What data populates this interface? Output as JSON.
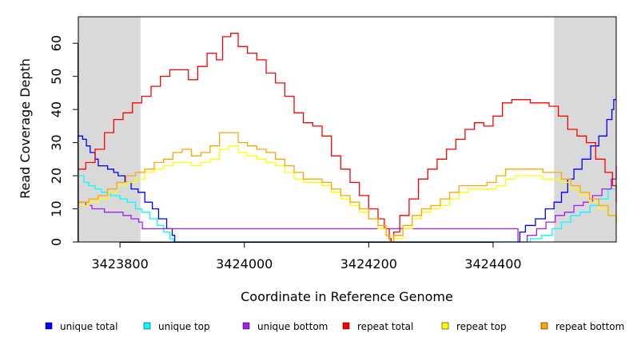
{
  "chart_data": {
    "type": "line",
    "title": "",
    "xlabel": "Coordinate in Reference Genome",
    "ylabel": "Read Coverage Depth",
    "xlim": [
      3423733,
      3424598
    ],
    "ylim": [
      0,
      68
    ],
    "x_ticks": [
      3423800,
      3424000,
      3424200,
      3424400
    ],
    "x_tick_labels": [
      "3423800",
      "3424000",
      "3424200",
      "3424400"
    ],
    "y_ticks": [
      0,
      10,
      20,
      30,
      40,
      50,
      60
    ],
    "y_tick_labels": [
      "0",
      "10",
      "20",
      "30",
      "40",
      "50",
      "60"
    ],
    "shaded_regions": [
      [
        3423733,
        3423833
      ],
      [
        3424498,
        3424598
      ]
    ],
    "grid": false,
    "legend_position": "bottom",
    "series": [
      {
        "name": "unique total",
        "color": "#0000ff",
        "x": [
          3423733,
          3423740,
          3423746,
          3423752,
          3423760,
          3423765,
          3423780,
          3423790,
          3423797,
          3423808,
          3423818,
          3423829,
          3423840,
          3423852,
          3423862,
          3423875,
          3423884,
          3423888,
          3424440,
          3424443,
          3424452,
          3424468,
          3424484,
          3424498,
          3424510,
          3424520,
          3424530,
          3424543,
          3424557,
          3424570,
          3424583,
          3424591,
          3424594,
          3424598
        ],
        "y": [
          32,
          31,
          29,
          27,
          25,
          23,
          22,
          21,
          20,
          18,
          16,
          15,
          12,
          10,
          7,
          4,
          2,
          0,
          0,
          3,
          5,
          7,
          10,
          12,
          15,
          19,
          22,
          25,
          29,
          32,
          37,
          40,
          43,
          43
        ]
      },
      {
        "name": "unique top",
        "color": "#00ffff",
        "x": [
          3423733,
          3423742,
          3423750,
          3423760,
          3423770,
          3423785,
          3423800,
          3423812,
          3423825,
          3423835,
          3423848,
          3423860,
          3423870,
          3423880,
          3423886,
          3424440,
          3424460,
          3424478,
          3424495,
          3424510,
          3424525,
          3424540,
          3424556,
          3424570,
          3424585,
          3424598
        ],
        "y": [
          20,
          18,
          17,
          16,
          15,
          14,
          13,
          12,
          10,
          9,
          7,
          5,
          3,
          1,
          0,
          0,
          1,
          2,
          4,
          6,
          8,
          9,
          11,
          13,
          16,
          18
        ]
      },
      {
        "name": "unique bottom",
        "color": "#a020f0",
        "x": [
          3423733,
          3423745,
          3423755,
          3423765,
          3423775,
          3423790,
          3423805,
          3423818,
          3423830,
          3423836,
          3424440,
          3424455,
          3424470,
          3424485,
          3424500,
          3424515,
          3424530,
          3424545,
          3424560,
          3424575,
          3424590,
          3424598
        ],
        "y": [
          12,
          11,
          10,
          10,
          9,
          9,
          8,
          7,
          6,
          4,
          0,
          2,
          4,
          6,
          8,
          9,
          11,
          12,
          14,
          16,
          19,
          23
        ]
      },
      {
        "name": "repeat total",
        "color": "#ff0000",
        "x": [
          3423733,
          3423745,
          3423760,
          3423775,
          3423790,
          3423805,
          3423820,
          3423835,
          3423850,
          3423865,
          3423880,
          3423895,
          3423910,
          3423925,
          3423940,
          3423955,
          3423965,
          3423978,
          3423990,
          3424005,
          3424020,
          3424035,
          3424050,
          3424065,
          3424080,
          3424095,
          3424110,
          3424125,
          3424140,
          3424155,
          3424170,
          3424185,
          3424200,
          3424215,
          3424225,
          3424233,
          3424236,
          3424240,
          3424250,
          3424265,
          3424280,
          3424295,
          3424310,
          3424325,
          3424340,
          3424355,
          3424370,
          3424385,
          3424400,
          3424415,
          3424430,
          3424445,
          3424460,
          3424475,
          3424490,
          3424505,
          3424520,
          3424535,
          3424550,
          3424565,
          3424580,
          3424592,
          3424598
        ],
        "y": [
          22,
          24,
          28,
          33,
          37,
          39,
          42,
          44,
          47,
          50,
          52,
          52,
          49,
          53,
          57,
          55,
          62,
          63,
          59,
          57,
          55,
          51,
          48,
          44,
          39,
          36,
          35,
          32,
          26,
          22,
          18,
          14,
          10,
          7,
          4,
          1,
          0,
          3,
          8,
          13,
          19,
          22,
          25,
          28,
          31,
          34,
          36,
          35,
          38,
          42,
          43,
          43,
          42,
          42,
          41,
          38,
          34,
          32,
          30,
          25,
          21,
          17,
          12
        ]
      },
      {
        "name": "repeat top",
        "color": "#ffff00",
        "x": [
          3423733,
          3423750,
          3423765,
          3423780,
          3423795,
          3423810,
          3423825,
          3423840,
          3423855,
          3423870,
          3423885,
          3423900,
          3423915,
          3423930,
          3423945,
          3423960,
          3423975,
          3423990,
          3424005,
          3424020,
          3424035,
          3424050,
          3424065,
          3424080,
          3424095,
          3424110,
          3424125,
          3424140,
          3424155,
          3424170,
          3424185,
          3424200,
          3424215,
          3424228,
          3424234,
          3424240,
          3424255,
          3424270,
          3424285,
          3424300,
          3424315,
          3424330,
          3424345,
          3424360,
          3424375,
          3424390,
          3424405,
          3424420,
          3424435,
          3424450,
          3424465,
          3424480,
          3424495,
          3424510,
          3424525,
          3424540,
          3424555,
          3424570,
          3424585,
          3424598
        ],
        "y": [
          11,
          12,
          13,
          15,
          17,
          18,
          19,
          21,
          22,
          23,
          24,
          24,
          23,
          24,
          25,
          28,
          29,
          27,
          26,
          25,
          24,
          23,
          21,
          19,
          18,
          18,
          17,
          15,
          13,
          11,
          9,
          7,
          4,
          2,
          0,
          1,
          4,
          7,
          9,
          10,
          11,
          13,
          15,
          16,
          16,
          16,
          17,
          19,
          20,
          20,
          20,
          19,
          19,
          18,
          16,
          14,
          12,
          10,
          8,
          6
        ]
      },
      {
        "name": "repeat bottom",
        "color": "#ffa500",
        "x": [
          3423733,
          3423750,
          3423765,
          3423780,
          3423795,
          3423810,
          3423825,
          3423840,
          3423855,
          3423870,
          3423885,
          3423900,
          3423915,
          3423930,
          3423945,
          3423960,
          3423975,
          3423990,
          3424005,
          3424020,
          3424035,
          3424050,
          3424065,
          3424080,
          3424095,
          3424110,
          3424125,
          3424140,
          3424155,
          3424170,
          3424185,
          3424200,
          3424215,
          3424228,
          3424234,
          3424240,
          3424255,
          3424270,
          3424285,
          3424300,
          3424315,
          3424330,
          3424345,
          3424360,
          3424375,
          3424390,
          3424405,
          3424420,
          3424435,
          3424450,
          3424465,
          3424480,
          3424495,
          3424510,
          3424525,
          3424540,
          3424555,
          3424570,
          3424585,
          3424598
        ],
        "y": [
          12,
          13,
          14,
          16,
          18,
          20,
          21,
          22,
          24,
          25,
          27,
          28,
          26,
          27,
          29,
          33,
          33,
          30,
          29,
          28,
          27,
          25,
          23,
          21,
          19,
          19,
          18,
          16,
          14,
          12,
          10,
          7,
          5,
          2,
          0,
          2,
          5,
          8,
          10,
          11,
          13,
          15,
          17,
          17,
          17,
          18,
          20,
          22,
          22,
          22,
          22,
          21,
          21,
          19,
          17,
          15,
          13,
          11,
          8,
          6
        ]
      }
    ]
  }
}
